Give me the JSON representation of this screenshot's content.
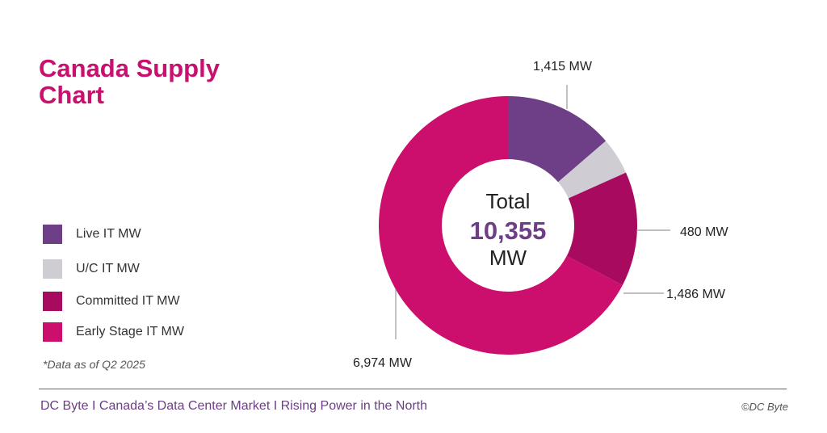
{
  "title": "Canada Supply Chart",
  "note": "*Data as of Q2 2025",
  "footer": {
    "left": "DC Byte I  Canada’s Data Center Market I Rising Power in the North",
    "right": "©DC Byte"
  },
  "center": {
    "label": "Total",
    "value": "10,355",
    "unit": "MW"
  },
  "colors": {
    "live": "#6e3f86",
    "uc": "#cfcdd3",
    "committed": "#a80a5f",
    "early": "#cc0e6d"
  },
  "chart_data": {
    "type": "pie",
    "donut": true,
    "total": 10355,
    "unit": "MW",
    "legend_position": "left",
    "slices": [
      {
        "name": "Live IT MW",
        "value": 1415,
        "label": "1,415 MW",
        "color": "#6e3f86"
      },
      {
        "name": "U/C IT MW",
        "value": 480,
        "label": "480 MW",
        "color": "#cfcdd3"
      },
      {
        "name": "Committed IT MW",
        "value": 1486,
        "label": "1,486 MW",
        "color": "#a80a5f"
      },
      {
        "name": "Early Stage IT MW",
        "value": 6974,
        "label": "6,974 MW",
        "color": "#cc0e6d"
      }
    ]
  }
}
